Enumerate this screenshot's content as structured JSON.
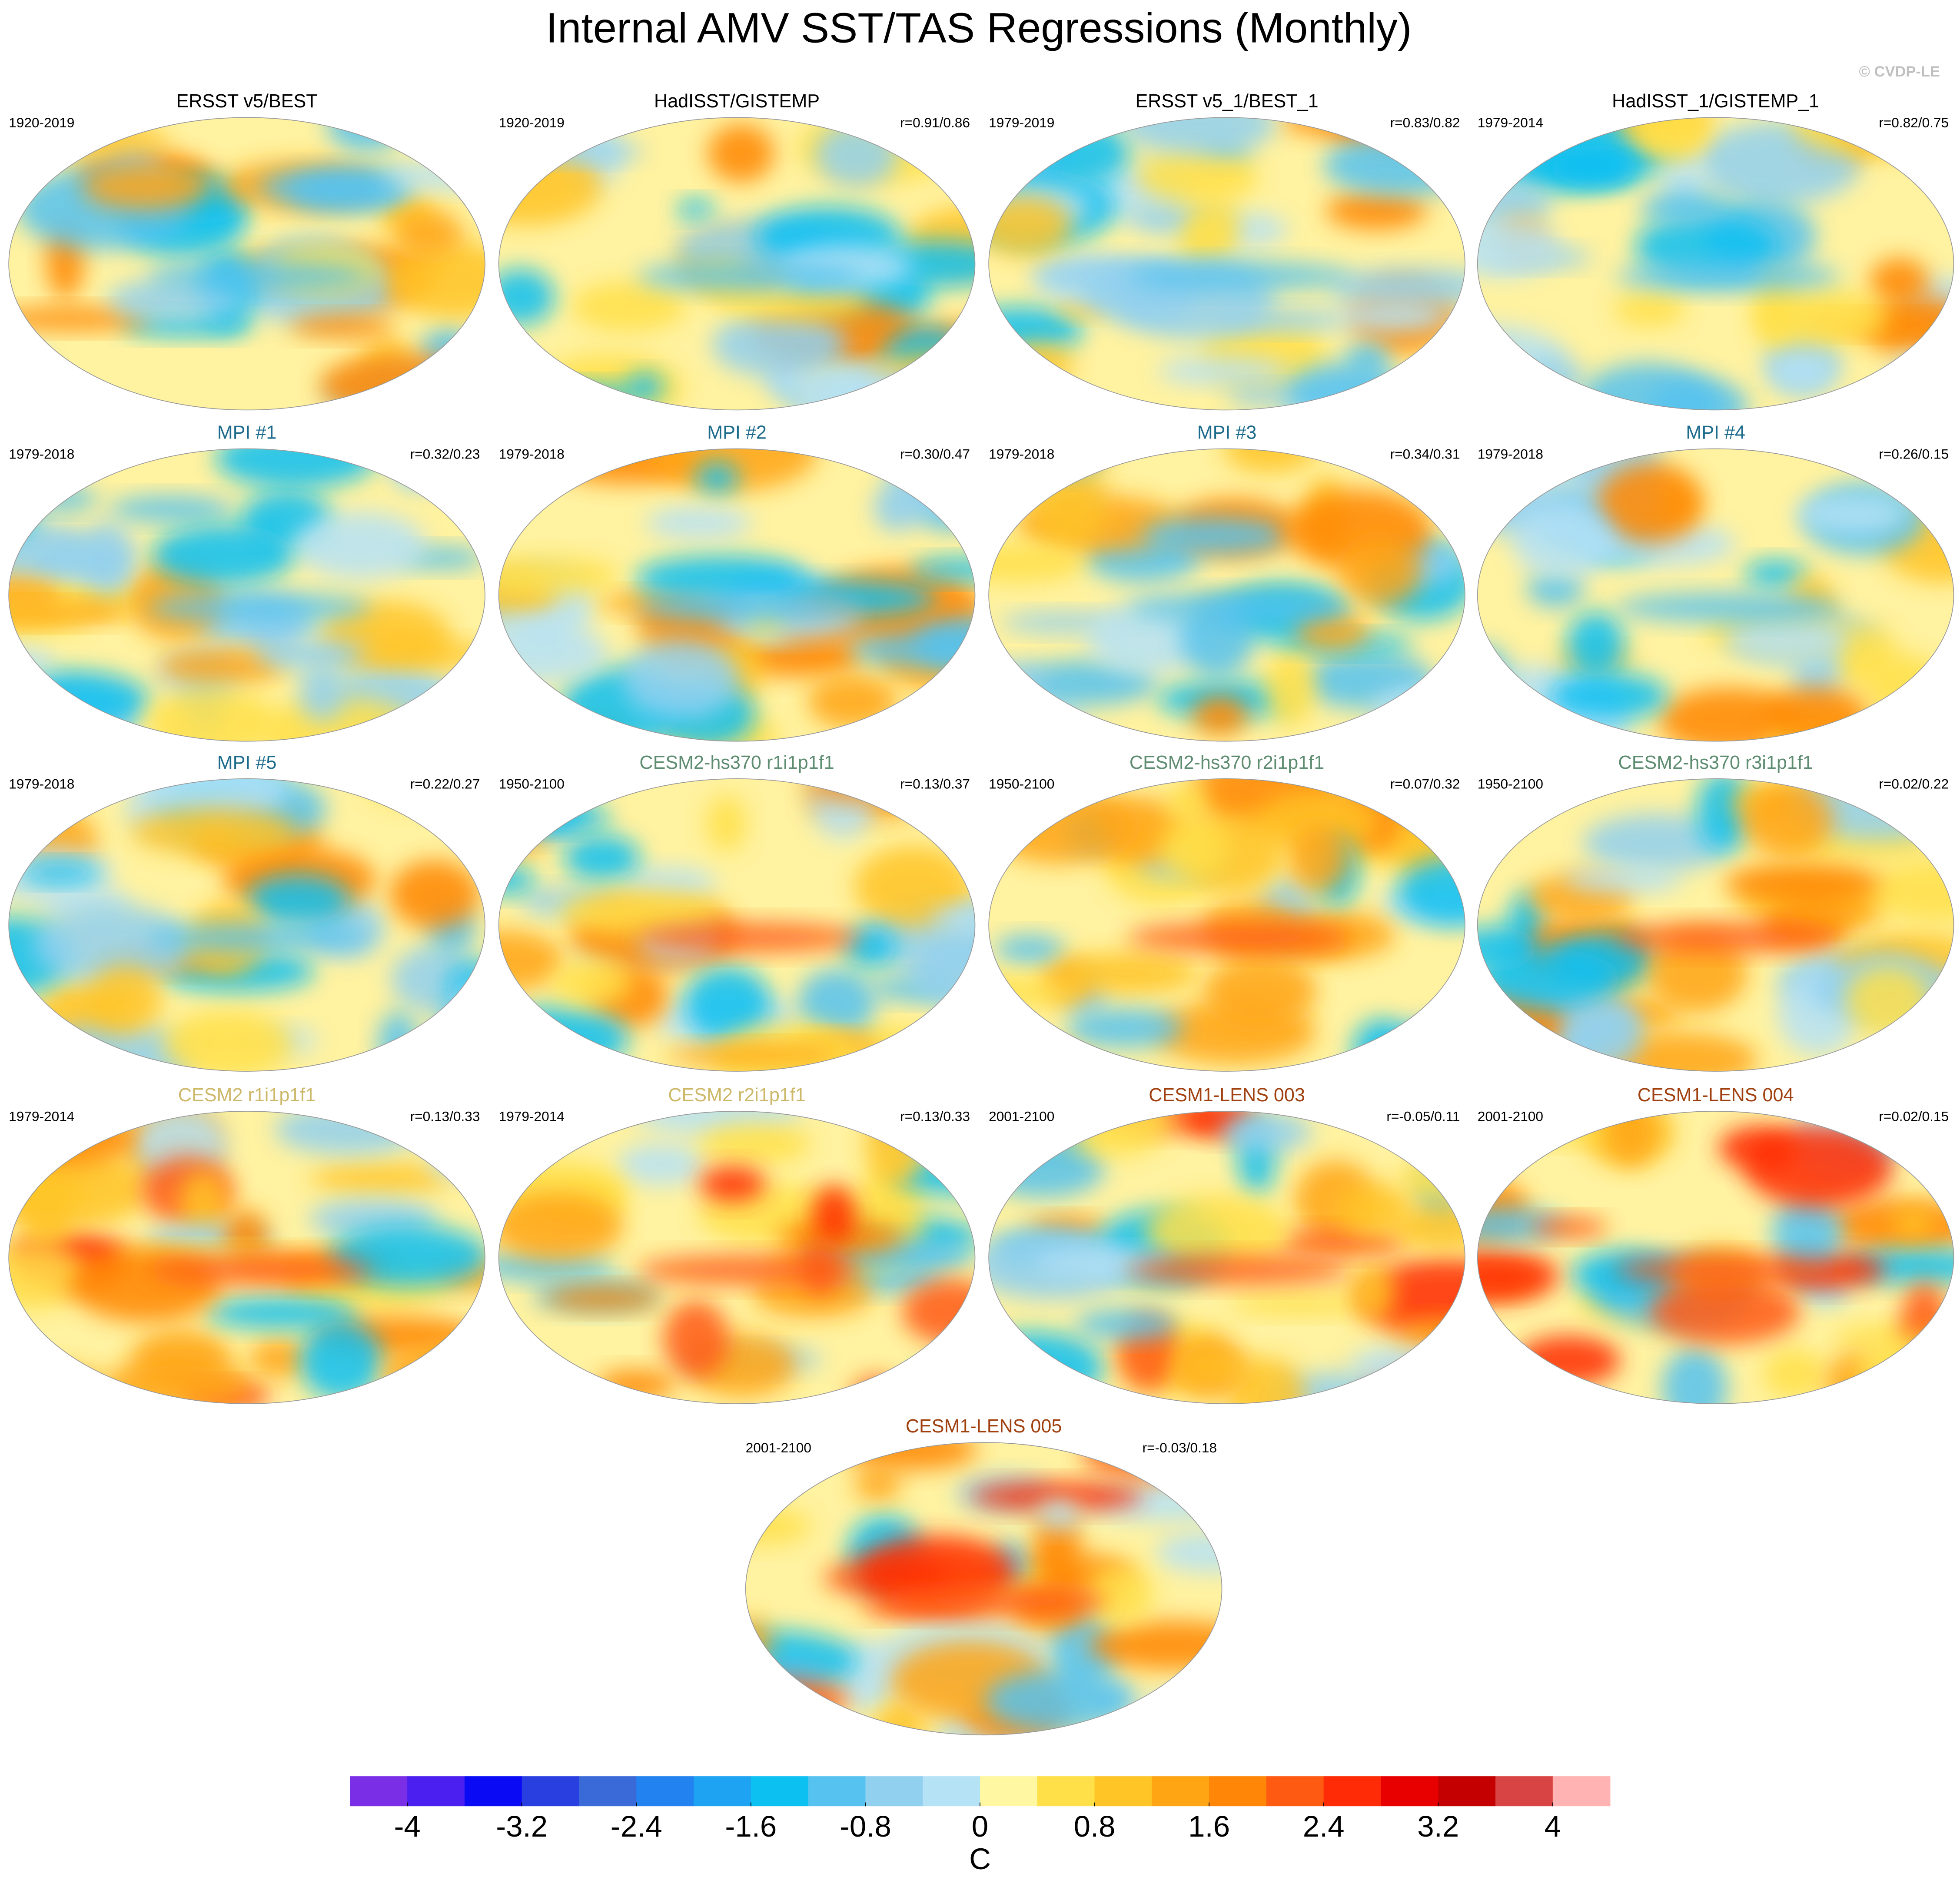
{
  "chart_data": {
    "type": "map-panels",
    "title": "Internal AMV SST/TAS Regressions (Monthly)",
    "watermark": "© CVDP-LE",
    "panels": [
      {
        "title": "ERSST v5/BEST",
        "period": "1920-2019",
        "color": "#000000"
      },
      {
        "title": "HadISST/GISTEMP",
        "period": "1920-2019",
        "r": "r=0.91/0.86",
        "color": "#000000"
      },
      {
        "title": "ERSST v5_1/BEST_1",
        "period": "1979-2019",
        "r": "r=0.83/0.82",
        "color": "#000000"
      },
      {
        "title": "HadISST_1/GISTEMP_1",
        "period": "1979-2014",
        "r": "r=0.82/0.75",
        "color": "#000000"
      },
      {
        "title": "MPI #1",
        "period": "1979-2018",
        "r": "r=0.32/0.23",
        "color": "#1c6b8c"
      },
      {
        "title": "MPI #2",
        "period": "1979-2018",
        "r": "r=0.30/0.47",
        "color": "#1c6b8c"
      },
      {
        "title": "MPI #3",
        "period": "1979-2018",
        "r": "r=0.34/0.31",
        "color": "#1c6b8c"
      },
      {
        "title": "MPI #4",
        "period": "1979-2018",
        "r": "r=0.26/0.15",
        "color": "#1c6b8c"
      },
      {
        "title": "MPI #5",
        "period": "1979-2018",
        "r": "r=0.22/0.27",
        "color": "#1c6b8c"
      },
      {
        "title": "CESM2-hs370 r1i1p1f1",
        "period": "1950-2100",
        "r": "r=0.13/0.37",
        "color": "#5e8c70"
      },
      {
        "title": "CESM2-hs370 r2i1p1f1",
        "period": "1950-2100",
        "r": "r=0.07/0.32",
        "color": "#5e8c70"
      },
      {
        "title": "CESM2-hs370 r3i1p1f1",
        "period": "1950-2100",
        "r": "r=0.02/0.22",
        "color": "#5e8c70"
      },
      {
        "title": "CESM2 r1i1p1f1",
        "period": "1979-2014",
        "r": "r=0.13/0.33",
        "color": "#cdb869"
      },
      {
        "title": "CESM2 r2i1p1f1",
        "period": "1979-2014",
        "r": "r=0.13/0.33",
        "color": "#cdb869"
      },
      {
        "title": "CESM1-LENS 003",
        "period": "2001-2100",
        "r": "r=-0.05/0.11",
        "color": "#a0400f"
      },
      {
        "title": "CESM1-LENS 004",
        "period": "2001-2100",
        "r": "r=0.02/0.15",
        "color": "#a0400f"
      },
      {
        "title": "CESM1-LENS 005",
        "period": "2001-2100",
        "r": "r=-0.03/0.18",
        "color": "#a0400f"
      }
    ],
    "colorbar": {
      "label": "C",
      "lim": [
        -4.4,
        4.4
      ],
      "ticks": [
        -4,
        -3.2,
        -2.4,
        -1.6,
        -0.8,
        0,
        0.8,
        1.6,
        2.4,
        3.2,
        4
      ],
      "colors": [
        "#7a2ee6",
        "#4a1ff0",
        "#0a0af5",
        "#2a3fe0",
        "#3a6ad8",
        "#2282f0",
        "#1ea2f2",
        "#0cc0f2",
        "#55c2f0",
        "#92d0ef",
        "#b6e2f6",
        "#fff7a2",
        "#ffe048",
        "#ffc426",
        "#ffa514",
        "#ff8606",
        "#ff5a12",
        "#ff2a06",
        "#e80000",
        "#c40000",
        "#d84444",
        "#ffb3b3"
      ]
    }
  }
}
